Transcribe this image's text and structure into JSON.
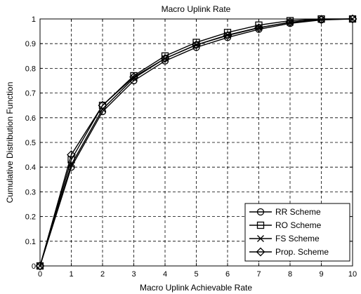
{
  "chart_data": {
    "type": "line",
    "title": "Macro Uplink Rate",
    "xlabel": "Macro Uplink Achievable Rate",
    "ylabel": "Cumulative Distribution Function",
    "xlim": [
      0,
      10
    ],
    "ylim": [
      0,
      1
    ],
    "x_ticks": [
      "0",
      "1",
      "2",
      "3",
      "4",
      "5",
      "6",
      "7",
      "8",
      "9",
      "10"
    ],
    "y_ticks": [
      "0",
      "0.1",
      "0.2",
      "0.3",
      "0.4",
      "0.5",
      "0.6",
      "0.7",
      "0.8",
      "0.9",
      "1"
    ],
    "grid": true,
    "legend_position": "bottom-right",
    "x": [
      0,
      1,
      2,
      3,
      4,
      5,
      6,
      7,
      8,
      9,
      10
    ],
    "series": [
      {
        "name": "RR Scheme",
        "marker": "circle",
        "values": [
          0,
          0.4,
          0.625,
          0.75,
          0.83,
          0.885,
          0.925,
          0.958,
          0.982,
          0.996,
          1.0
        ]
      },
      {
        "name": "RO Scheme",
        "marker": "square",
        "values": [
          0,
          0.43,
          0.65,
          0.77,
          0.85,
          0.905,
          0.945,
          0.975,
          0.993,
          1.0,
          1.0
        ]
      },
      {
        "name": "FS Scheme",
        "marker": "x",
        "values": [
          0,
          0.41,
          0.635,
          0.76,
          0.84,
          0.895,
          0.935,
          0.965,
          0.986,
          0.998,
          1.0
        ]
      },
      {
        "name": "Prop. Scheme",
        "marker": "diamond",
        "values": [
          0,
          0.45,
          0.65,
          0.765,
          0.84,
          0.895,
          0.933,
          0.964,
          0.987,
          0.998,
          1.0
        ]
      }
    ]
  }
}
